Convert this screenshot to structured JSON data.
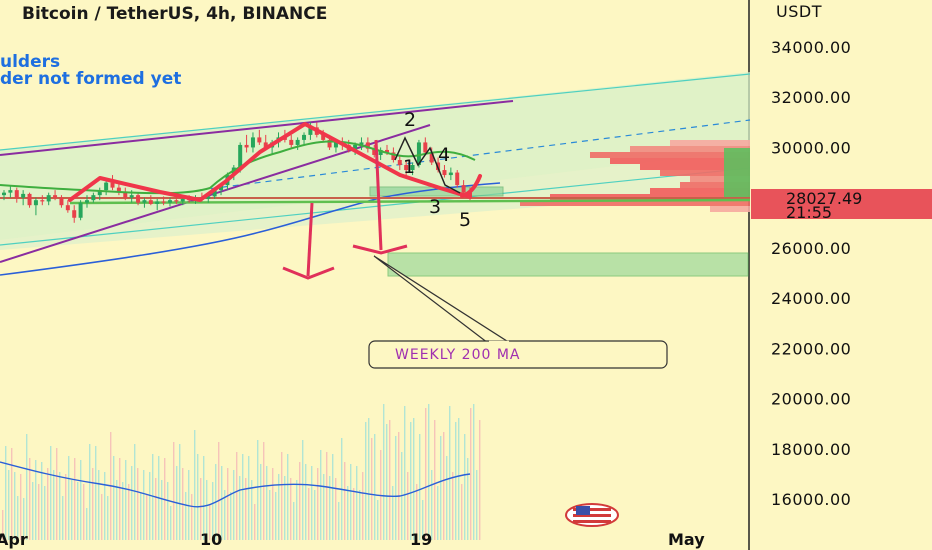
{
  "header": {
    "title": "Bitcoin / TetherUS, 4h, BINANCE",
    "note_line1": "ulders",
    "note_line2": "der not formed yet"
  },
  "callout": {
    "label": "WEEKLY 200 MA"
  },
  "wave_labels": [
    "2",
    "1",
    "4",
    "3",
    "5"
  ],
  "price_tag": {
    "price": "28027.49",
    "countdown": "21:55",
    "color": "#e8535a"
  },
  "colors": {
    "background": "#fdf7c3",
    "pattern_red": "#f0364a",
    "ma_green": "#3fae3f",
    "channel_purple": "#8a2ca0",
    "channel_cyan": "#4fd0c0",
    "ma_blue": "#2a5fd8",
    "volume_cyan": "#9fe0d8",
    "profile_red": "#f25c5c",
    "profile_green": "#5fbf5f"
  },
  "chart_data": {
    "type": "candlestick",
    "title": "Bitcoin / TetherUS, 4h, BINANCE",
    "ylabel": "USDT",
    "y_ticks": [
      "34000.00",
      "32000.00",
      "30000.00",
      "26000.00",
      "24000.00",
      "22000.00",
      "20000.00",
      "18000.00",
      "16000.00"
    ],
    "ylim": [
      15200,
      35600
    ],
    "x_ticks": [
      "Apr",
      "10",
      "19",
      "May"
    ],
    "last_price": 28027.49,
    "candles": [
      {
        "o": 28100,
        "h": 28300,
        "l": 27900,
        "c": 28200
      },
      {
        "o": 28200,
        "h": 28500,
        "l": 28000,
        "c": 28300
      },
      {
        "o": 28300,
        "h": 28400,
        "l": 27800,
        "c": 28000
      },
      {
        "o": 28000,
        "h": 28300,
        "l": 27700,
        "c": 28150
      },
      {
        "o": 28150,
        "h": 28200,
        "l": 27600,
        "c": 27700
      },
      {
        "o": 27700,
        "h": 28000,
        "l": 27300,
        "c": 27900
      },
      {
        "o": 27900,
        "h": 28100,
        "l": 27700,
        "c": 27850
      },
      {
        "o": 27850,
        "h": 28200,
        "l": 27700,
        "c": 28100
      },
      {
        "o": 28100,
        "h": 28300,
        "l": 27900,
        "c": 28000
      },
      {
        "o": 28000,
        "h": 28100,
        "l": 27600,
        "c": 27700
      },
      {
        "o": 27700,
        "h": 27900,
        "l": 27400,
        "c": 27500
      },
      {
        "o": 27500,
        "h": 27700,
        "l": 27000,
        "c": 27200
      },
      {
        "o": 27200,
        "h": 27900,
        "l": 27100,
        "c": 27800
      },
      {
        "o": 27800,
        "h": 28100,
        "l": 27600,
        "c": 27900
      },
      {
        "o": 27900,
        "h": 28200,
        "l": 27800,
        "c": 28100
      },
      {
        "o": 28100,
        "h": 28400,
        "l": 27900,
        "c": 28300
      },
      {
        "o": 28300,
        "h": 28700,
        "l": 28100,
        "c": 28600
      },
      {
        "o": 28600,
        "h": 28900,
        "l": 28300,
        "c": 28400
      },
      {
        "o": 28400,
        "h": 28600,
        "l": 28100,
        "c": 28200
      },
      {
        "o": 28200,
        "h": 28400,
        "l": 27900,
        "c": 28000
      },
      {
        "o": 28000,
        "h": 28300,
        "l": 27800,
        "c": 28100
      },
      {
        "o": 28100,
        "h": 28200,
        "l": 27700,
        "c": 27800
      },
      {
        "o": 27800,
        "h": 28000,
        "l": 27600,
        "c": 27900
      },
      {
        "o": 27900,
        "h": 28100,
        "l": 27700,
        "c": 27750
      },
      {
        "o": 27750,
        "h": 27950,
        "l": 27500,
        "c": 27850
      },
      {
        "o": 27850,
        "h": 28050,
        "l": 27700,
        "c": 27800
      },
      {
        "o": 27800,
        "h": 28000,
        "l": 27650,
        "c": 27900
      },
      {
        "o": 27900,
        "h": 28050,
        "l": 27750,
        "c": 27850
      },
      {
        "o": 27850,
        "h": 28000,
        "l": 27700,
        "c": 27950
      },
      {
        "o": 27950,
        "h": 28100,
        "l": 27800,
        "c": 27900
      },
      {
        "o": 27900,
        "h": 28100,
        "l": 27750,
        "c": 28000
      },
      {
        "o": 28000,
        "h": 28200,
        "l": 27850,
        "c": 27950
      },
      {
        "o": 27950,
        "h": 28150,
        "l": 27800,
        "c": 28050
      },
      {
        "o": 28050,
        "h": 28400,
        "l": 27950,
        "c": 28300
      },
      {
        "o": 28300,
        "h": 28600,
        "l": 28100,
        "c": 28500
      },
      {
        "o": 28500,
        "h": 29000,
        "l": 28300,
        "c": 28900
      },
      {
        "o": 28900,
        "h": 29300,
        "l": 28700,
        "c": 29200
      },
      {
        "o": 29200,
        "h": 30200,
        "l": 29000,
        "c": 30100
      },
      {
        "o": 30100,
        "h": 30500,
        "l": 29800,
        "c": 30000
      },
      {
        "o": 30000,
        "h": 30600,
        "l": 29800,
        "c": 30400
      },
      {
        "o": 30400,
        "h": 30700,
        "l": 30100,
        "c": 30200
      },
      {
        "o": 30200,
        "h": 30500,
        "l": 29900,
        "c": 30000
      },
      {
        "o": 30000,
        "h": 30300,
        "l": 29700,
        "c": 30200
      },
      {
        "o": 30200,
        "h": 30600,
        "l": 30000,
        "c": 30400
      },
      {
        "o": 30400,
        "h": 30700,
        "l": 30200,
        "c": 30300
      },
      {
        "o": 30300,
        "h": 30500,
        "l": 30000,
        "c": 30100
      },
      {
        "o": 30100,
        "h": 30400,
        "l": 29900,
        "c": 30300
      },
      {
        "o": 30300,
        "h": 30600,
        "l": 30100,
        "c": 30500
      },
      {
        "o": 30500,
        "h": 31000,
        "l": 30300,
        "c": 30800
      },
      {
        "o": 30800,
        "h": 31000,
        "l": 30400,
        "c": 30500
      },
      {
        "o": 30500,
        "h": 30700,
        "l": 30200,
        "c": 30300
      },
      {
        "o": 30300,
        "h": 30500,
        "l": 29900,
        "c": 30000
      },
      {
        "o": 30000,
        "h": 30300,
        "l": 29800,
        "c": 30200
      },
      {
        "o": 30200,
        "h": 30400,
        "l": 29900,
        "c": 30100
      },
      {
        "o": 30100,
        "h": 30300,
        "l": 29800,
        "c": 29900
      },
      {
        "o": 29900,
        "h": 30200,
        "l": 29700,
        "c": 30100
      },
      {
        "o": 30100,
        "h": 30400,
        "l": 29900,
        "c": 30200
      },
      {
        "o": 30200,
        "h": 30400,
        "l": 29800,
        "c": 29950
      },
      {
        "o": 29950,
        "h": 30100,
        "l": 29600,
        "c": 29700
      },
      {
        "o": 29700,
        "h": 30000,
        "l": 29500,
        "c": 29900
      },
      {
        "o": 29900,
        "h": 30100,
        "l": 29700,
        "c": 29800
      },
      {
        "o": 29800,
        "h": 30000,
        "l": 29400,
        "c": 29500
      },
      {
        "o": 29500,
        "h": 29700,
        "l": 29100,
        "c": 29300
      },
      {
        "o": 29300,
        "h": 29500,
        "l": 28900,
        "c": 29100
      },
      {
        "o": 29100,
        "h": 29400,
        "l": 28900,
        "c": 29300
      },
      {
        "o": 29300,
        "h": 30300,
        "l": 29200,
        "c": 30200
      },
      {
        "o": 30200,
        "h": 30400,
        "l": 29700,
        "c": 29800
      },
      {
        "o": 29800,
        "h": 30000,
        "l": 29300,
        "c": 29400
      },
      {
        "o": 29400,
        "h": 29600,
        "l": 29000,
        "c": 29100
      },
      {
        "o": 29100,
        "h": 29300,
        "l": 28800,
        "c": 28900
      },
      {
        "o": 28900,
        "h": 29200,
        "l": 28700,
        "c": 29000
      },
      {
        "o": 29000,
        "h": 29100,
        "l": 28400,
        "c": 28500
      },
      {
        "o": 28500,
        "h": 28700,
        "l": 28000,
        "c": 28200
      },
      {
        "o": 28200,
        "h": 28400,
        "l": 27900,
        "c": 28027
      }
    ]
  }
}
